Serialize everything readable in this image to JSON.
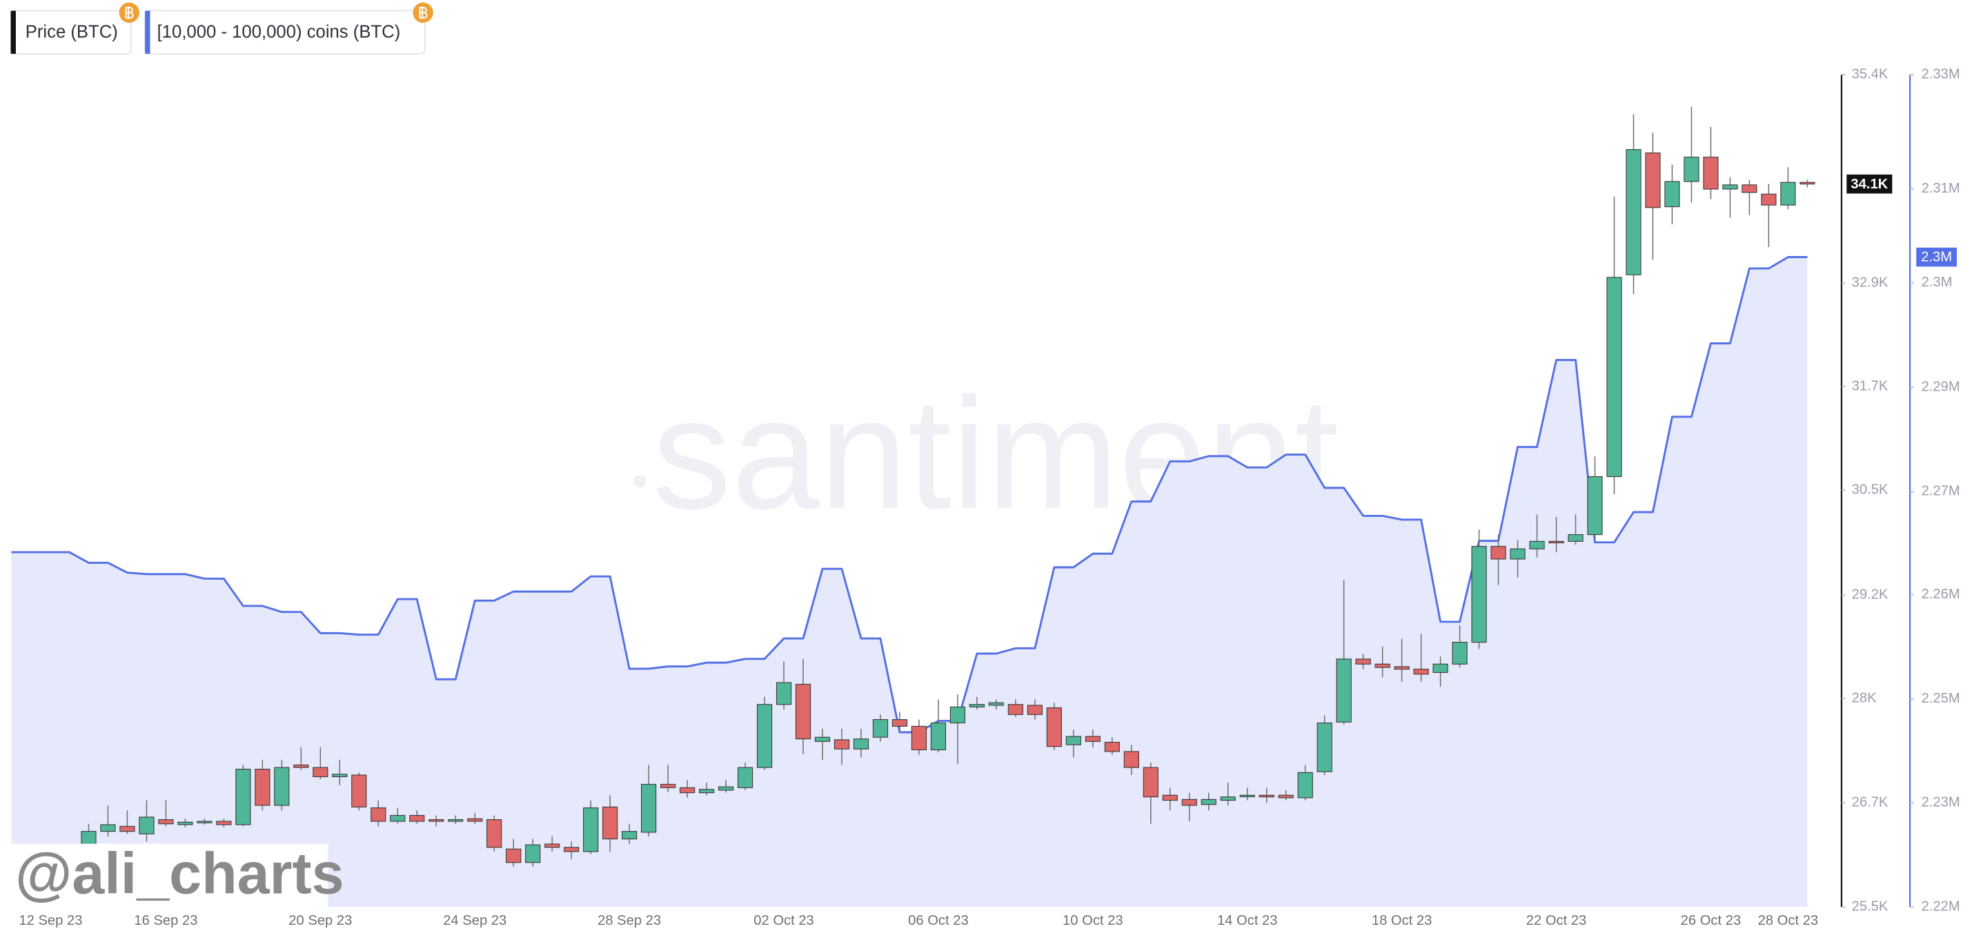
{
  "chart_data": {
    "type": "candlestick",
    "watermark": "santiment",
    "credit": "@ali_charts",
    "categories": [
      "12 Sep 23",
      null,
      null,
      null,
      null,
      null,
      null,
      null,
      "16 Sep 23",
      null,
      null,
      null,
      null,
      null,
      null,
      null,
      "20 Sep 23",
      null,
      null,
      null,
      null,
      null,
      null,
      null,
      "24 Sep 23",
      null,
      null,
      null,
      null,
      null,
      null,
      null,
      "28 Sep 23",
      null,
      null,
      null,
      null,
      null,
      null,
      null,
      "02 Oct 23",
      null,
      null,
      null,
      null,
      null,
      null,
      null,
      "06 Oct 23",
      null,
      null,
      null,
      null,
      null,
      null,
      null,
      "10 Oct 23",
      null,
      null,
      null,
      null,
      null,
      null,
      null,
      "14 Oct 23",
      null,
      null,
      null,
      null,
      null,
      null,
      null,
      "18 Oct 23",
      null,
      null,
      null,
      null,
      null,
      null,
      null,
      "22 Oct 23",
      null,
      null,
      null,
      null,
      null,
      null,
      null,
      "26 Oct 23",
      null,
      null,
      null,
      "28 Oct 23",
      null
    ],
    "series": [
      {
        "name": "Price (BTC)",
        "type": "candlestick",
        "up_color": "#4fb797",
        "down_color": "#e06767",
        "axis_color": "#111111",
        "last_label": "34.1K",
        "open": [
          null,
          null,
          null,
          null,
          26250,
          26400,
          26460,
          26370,
          26540,
          26480,
          26510,
          26520,
          26480,
          27140,
          26710,
          27190,
          27160,
          27050,
          27070,
          26680,
          26520,
          26590,
          26540,
          26520,
          26550,
          26540,
          26190,
          26030,
          26250,
          26210,
          26160,
          26690,
          26310,
          26390,
          26960,
          26920,
          26860,
          26890,
          26920,
          27160,
          27910,
          28150,
          27470,
          27490,
          27380,
          27520,
          27730,
          27650,
          27370,
          27690,
          27880,
          27900,
          27910,
          27900,
          27870,
          27430,
          27530,
          27460,
          27350,
          27160,
          26830,
          26780,
          26720,
          26770,
          26830,
          26830,
          26830,
          26800,
          27110,
          27700,
          28450,
          28390,
          28360,
          28330,
          28290,
          28390,
          28650,
          29790,
          29640,
          29760,
          29850,
          29850,
          29930,
          30620,
          33020,
          34470,
          33830,
          34130,
          34420,
          34040,
          34090,
          33980,
          33850,
          34120
        ],
        "high": [
          null,
          null,
          null,
          null,
          26490,
          26710,
          26650,
          26770,
          26770,
          26550,
          26550,
          26550,
          27190,
          27250,
          27250,
          27400,
          27400,
          27250,
          27100,
          26770,
          26680,
          26650,
          26590,
          26590,
          26620,
          26590,
          26310,
          26310,
          26340,
          26280,
          26770,
          26830,
          26490,
          27190,
          27190,
          27010,
          26980,
          27010,
          27220,
          28000,
          28420,
          28450,
          27620,
          27620,
          27620,
          27790,
          27820,
          27730,
          27970,
          28030,
          28000,
          27970,
          27970,
          27970,
          27930,
          27610,
          27610,
          27520,
          27430,
          27220,
          26920,
          26860,
          26860,
          26980,
          26920,
          26920,
          26890,
          27190,
          27780,
          29390,
          28510,
          28600,
          28690,
          28750,
          28480,
          28850,
          29990,
          29930,
          29870,
          30170,
          30140,
          30170,
          30860,
          33950,
          34930,
          34710,
          34330,
          35020,
          34780,
          34180,
          34150,
          34100,
          34300,
          34150
        ],
        "low": [
          null,
          null,
          null,
          null,
          26250,
          26340,
          26370,
          26280,
          26460,
          26450,
          26480,
          26450,
          26460,
          26650,
          26650,
          27130,
          27020,
          26950,
          26650,
          26460,
          26490,
          26490,
          26460,
          26490,
          26490,
          26160,
          25980,
          25980,
          26160,
          26070,
          26130,
          26160,
          26250,
          26340,
          26870,
          26800,
          26830,
          26860,
          26890,
          27130,
          27850,
          27320,
          27250,
          27190,
          27280,
          27470,
          27580,
          27310,
          27340,
          27200,
          27850,
          27850,
          27760,
          27730,
          27370,
          27280,
          27400,
          27310,
          27070,
          26490,
          26650,
          26520,
          26650,
          26710,
          26770,
          26740,
          26770,
          26770,
          27070,
          27670,
          28330,
          28230,
          28180,
          28180,
          28120,
          28350,
          28570,
          29330,
          29420,
          29660,
          29720,
          29810,
          29880,
          30410,
          32790,
          33200,
          33620,
          33880,
          33920,
          33700,
          33730,
          33350,
          33800,
          34060
        ],
        "close": [
          null,
          null,
          null,
          null,
          26400,
          26480,
          26400,
          26570,
          26490,
          26510,
          26520,
          26480,
          27140,
          26710,
          27160,
          27160,
          27050,
          27080,
          26690,
          26520,
          26590,
          26520,
          26520,
          26540,
          26520,
          26210,
          26030,
          26240,
          26210,
          26160,
          26680,
          26310,
          26400,
          26960,
          26920,
          26860,
          26900,
          26930,
          27160,
          27910,
          28170,
          27500,
          27520,
          27380,
          27500,
          27730,
          27650,
          27370,
          27690,
          27880,
          27910,
          27930,
          27790,
          27790,
          27410,
          27530,
          27470,
          27350,
          27160,
          26810,
          26770,
          26710,
          26780,
          26810,
          26830,
          26810,
          26800,
          27100,
          27690,
          28450,
          28390,
          28350,
          28330,
          28270,
          28390,
          28650,
          29790,
          29640,
          29760,
          29850,
          29840,
          29930,
          30620,
          32990,
          34510,
          33820,
          34130,
          34420,
          34040,
          34090,
          34000,
          33850,
          34120,
          34100
        ]
      },
      {
        "name": "[10,000 - 100,000) coins (BTC)",
        "type": "area",
        "axis": "y2",
        "color": "#5470e6",
        "fill_color": "#e6e9fb",
        "last_label": "2.3M",
        "values": [
          2266900,
          2266900,
          2266900,
          2266900,
          2265500,
          2265500,
          2264200,
          2264000,
          2264000,
          2264000,
          2263400,
          2263400,
          2259800,
          2259800,
          2259000,
          2259000,
          2256200,
          2256200,
          2256000,
          2256000,
          2260700,
          2260700,
          2250100,
          2250100,
          2260500,
          2260500,
          2261700,
          2261700,
          2261700,
          2261700,
          2263700,
          2263700,
          2251500,
          2251500,
          2251800,
          2251800,
          2252300,
          2252300,
          2252800,
          2252800,
          2255500,
          2255500,
          2264700,
          2264700,
          2255500,
          2255500,
          2243100,
          2243100,
          2244600,
          2244600,
          2253500,
          2253500,
          2254200,
          2254200,
          2264900,
          2264900,
          2266700,
          2266700,
          2273600,
          2273600,
          2278900,
          2278900,
          2279600,
          2279600,
          2278100,
          2278100,
          2279800,
          2279800,
          2275400,
          2275400,
          2271700,
          2271700,
          2271200,
          2271200,
          2257700,
          2257700,
          2268400,
          2268400,
          2280800,
          2280800,
          2292300,
          2292300,
          2268200,
          2268200,
          2272200,
          2272200,
          2284800,
          2284800,
          2294500,
          2294500,
          2304400,
          2304400,
          2305900,
          2305900
        ]
      }
    ],
    "ylim": [
      25500,
      35400
    ],
    "yticks": [
      {
        "value": 25500,
        "label": "25.5K"
      },
      {
        "value": 26740,
        "label": "26.7K"
      },
      {
        "value": 27980,
        "label": "28K"
      },
      {
        "value": 29210,
        "label": "29.2K"
      },
      {
        "value": 30460,
        "label": "30.5K"
      },
      {
        "value": 31690,
        "label": "31.7K"
      },
      {
        "value": 32920,
        "label": "32.9K"
      },
      {
        "value": 35400,
        "label": "35.4K"
      }
    ],
    "y2lim": [
      2220000,
      2330000
    ],
    "y2ticks": [
      {
        "value": 2220000,
        "label": "2.22M"
      },
      {
        "value": 2233800,
        "label": "2.23M"
      },
      {
        "value": 2247500,
        "label": "2.25M"
      },
      {
        "value": 2261300,
        "label": "2.26M"
      },
      {
        "value": 2274900,
        "label": "2.27M"
      },
      {
        "value": 2288700,
        "label": "2.29M"
      },
      {
        "value": 2302500,
        "label": "2.3M"
      },
      {
        "value": 2314900,
        "label": "2.31M"
      },
      {
        "value": 2330000,
        "label": "2.33M"
      }
    ]
  }
}
